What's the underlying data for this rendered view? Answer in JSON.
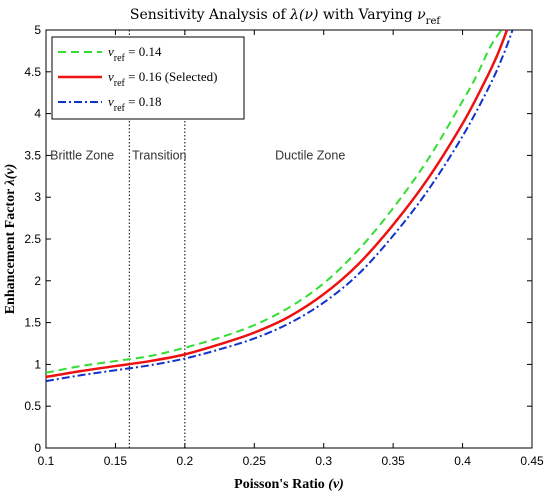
{
  "chart_data": {
    "type": "line",
    "title": {
      "prefix": "Sensitivity Analysis of ",
      "lambda": "λ(ν)",
      "middle": " with Varying ",
      "nu": "ν",
      "sub": "ref"
    },
    "xlabel": {
      "main": "Poisson's Ratio ",
      "sym": "(ν)"
    },
    "ylabel": {
      "main": "Enhancement Factor ",
      "sym": "λ(ν)"
    },
    "xlim": [
      0.1,
      0.45
    ],
    "ylim": [
      0,
      5
    ],
    "x_ticks": [
      "0.1",
      "0.15",
      "0.2",
      "0.25",
      "0.3",
      "0.35",
      "0.4",
      "0.45"
    ],
    "y_ticks": [
      "0",
      "0.5",
      "1",
      "1.5",
      "2",
      "2.5",
      "3",
      "3.5",
      "4",
      "4.5",
      "5"
    ],
    "x_tick_values": [
      0.1,
      0.15,
      0.2,
      0.25,
      0.3,
      0.35,
      0.4,
      0.45
    ],
    "y_tick_values": [
      0,
      0.5,
      1,
      1.5,
      2,
      2.5,
      3,
      3.5,
      4,
      4.5,
      5
    ],
    "grid": false,
    "legend_position": "top-left",
    "vlines": [
      0.16,
      0.2
    ],
    "annotations": [
      {
        "text": "Brittle Zone",
        "x": 0.103,
        "y": 3.45
      },
      {
        "text": "Transition",
        "x": 0.162,
        "y": 3.45
      },
      {
        "text": "Ductile Zone",
        "x": 0.265,
        "y": 3.45
      }
    ],
    "series": [
      {
        "name": "= 0.14",
        "legend_sym": "ν",
        "legend_sub": "ref",
        "color": "#33dd33",
        "dash": "8,5",
        "width": 2,
        "x": [
          0.1,
          0.125,
          0.15,
          0.175,
          0.2,
          0.225,
          0.25,
          0.275,
          0.3,
          0.325,
          0.35,
          0.375,
          0.4,
          0.41,
          0.42,
          0.428
        ],
        "y": [
          0.9,
          0.98,
          1.04,
          1.1,
          1.2,
          1.32,
          1.47,
          1.68,
          1.97,
          2.37,
          2.87,
          3.45,
          4.15,
          4.45,
          4.8,
          5.0
        ]
      },
      {
        "name": "= 0.16 (Selected)",
        "legend_sym": "ν",
        "legend_sub": "ref",
        "color": "#ee1111",
        "dash": "",
        "width": 2.5,
        "x": [
          0.1,
          0.125,
          0.15,
          0.175,
          0.2,
          0.225,
          0.25,
          0.275,
          0.3,
          0.325,
          0.35,
          0.375,
          0.4,
          0.415,
          0.425,
          0.432
        ],
        "y": [
          0.85,
          0.92,
          0.98,
          1.04,
          1.12,
          1.24,
          1.38,
          1.57,
          1.84,
          2.2,
          2.67,
          3.22,
          3.88,
          4.35,
          4.7,
          5.0
        ]
      },
      {
        "name": "= 0.18",
        "legend_sym": "ν",
        "legend_sub": "ref",
        "color": "#1133cc",
        "dash": "8,3,2,3",
        "width": 2,
        "x": [
          0.1,
          0.125,
          0.15,
          0.175,
          0.2,
          0.225,
          0.25,
          0.275,
          0.3,
          0.325,
          0.35,
          0.375,
          0.4,
          0.42,
          0.43,
          0.436
        ],
        "y": [
          0.8,
          0.87,
          0.93,
          0.99,
          1.07,
          1.18,
          1.31,
          1.49,
          1.74,
          2.08,
          2.54,
          3.08,
          3.73,
          4.35,
          4.73,
          5.0
        ]
      }
    ]
  }
}
